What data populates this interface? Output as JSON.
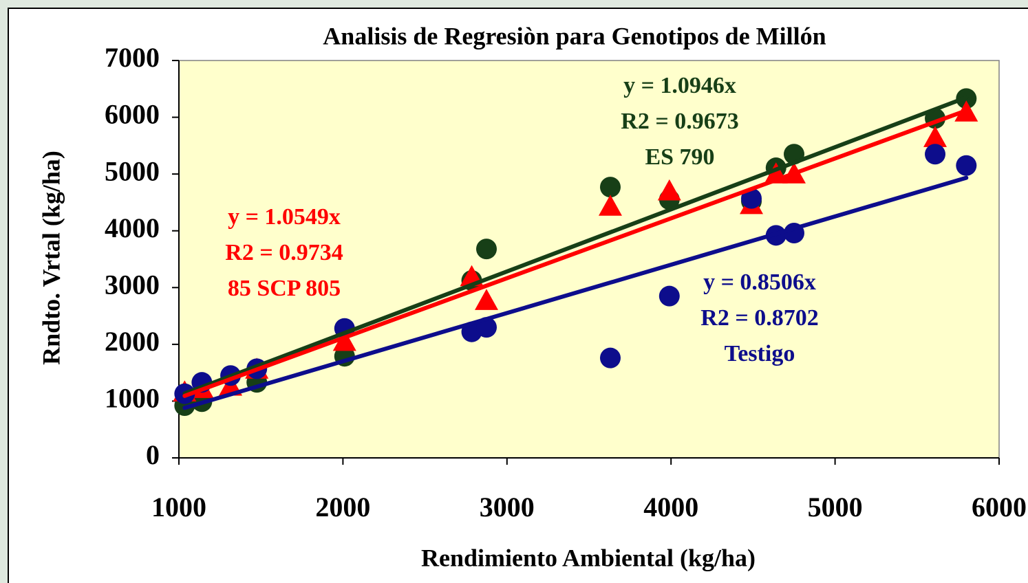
{
  "chart_data": {
    "type": "scatter",
    "title": "Analisis de Regresiòn para Genotipos de Millón",
    "x_label": "Rendimiento Ambiental (kg/ha)",
    "y_label": "Rndto. Vrtal (kg/ha)",
    "xlim": [
      1000,
      6000
    ],
    "ylim": [
      0,
      7000
    ],
    "xticks": [
      1000,
      2000,
      3000,
      4000,
      5000,
      6000
    ],
    "yticks": [
      0,
      1000,
      2000,
      3000,
      4000,
      5000,
      6000,
      7000
    ],
    "series": [
      {
        "name": "ES 790",
        "color": "#173f17",
        "marker": "circle",
        "equation": "y = 1.0946x",
        "r2": "R2 = 0.9673",
        "slope": 1.0946,
        "x": [
          1035,
          1140,
          1475,
          2010,
          2785,
          2875,
          3630,
          3990,
          4490,
          4640,
          4750,
          5610,
          5800
        ],
        "values": [
          920,
          990,
          1330,
          1790,
          3125,
          3680,
          4770,
          4550,
          4520,
          5110,
          5350,
          5980,
          6330
        ]
      },
      {
        "name": "85 SCP 805",
        "color": "#ff0000",
        "marker": "triangle",
        "equation": "y = 1.0549x",
        "r2": "R2 = 0.9734",
        "slope": 1.0549,
        "x": [
          1035,
          1140,
          1315,
          1475,
          2010,
          2785,
          2875,
          3630,
          3990,
          4490,
          4640,
          4750,
          5610,
          5800
        ],
        "values": [
          1160,
          1220,
          1260,
          1560,
          2050,
          3190,
          2770,
          4430,
          4700,
          4460,
          5000,
          5000,
          5640,
          6090
        ]
      },
      {
        "name": "Testigo",
        "color": "#0d0d8c",
        "marker": "circle",
        "equation": "y = 0.8506x",
        "r2": "R2 = 0.8702",
        "slope": 0.8506,
        "x": [
          1035,
          1140,
          1315,
          1475,
          2010,
          2785,
          2875,
          3630,
          3990,
          4490,
          4640,
          4750,
          5610,
          5800
        ],
        "values": [
          1130,
          1330,
          1450,
          1570,
          2280,
          2220,
          2300,
          1760,
          2850,
          4570,
          3920,
          3960,
          5350,
          5150
        ]
      }
    ]
  }
}
